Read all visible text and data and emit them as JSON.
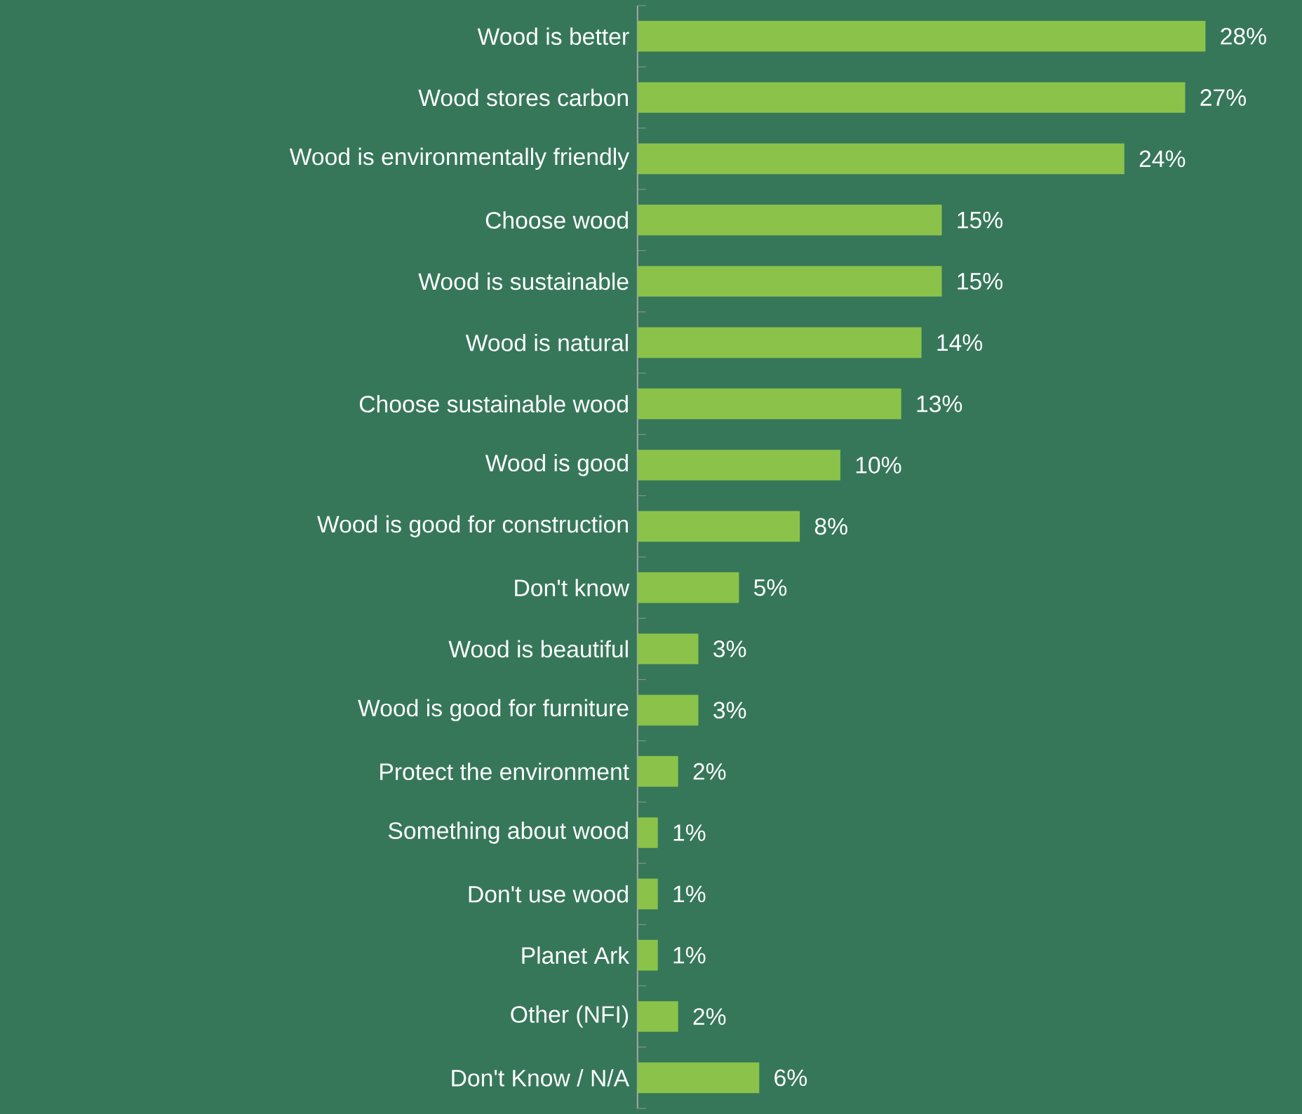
{
  "chart_data": {
    "type": "bar",
    "orientation": "horizontal",
    "categories": [
      "Wood is better",
      "Wood stores carbon",
      "Wood is environmentally friendly",
      "Choose wood",
      "Wood is sustainable",
      "Wood is natural",
      "Choose sustainable wood",
      "Wood is good",
      "Wood is good for construction",
      "Don't know",
      "Wood is beautiful",
      "Wood is good for furniture",
      "Protect the environment",
      "Something about wood",
      "Don't use wood",
      "Planet Ark",
      "Other (NFI)",
      "Don't Know / N/A"
    ],
    "values": [
      28,
      27,
      24,
      15,
      15,
      14,
      13,
      10,
      8,
      5,
      3,
      3,
      2,
      1,
      1,
      1,
      2,
      6
    ],
    "value_labels": [
      "28%",
      "27%",
      "24%",
      "15%",
      "15%",
      "14%",
      "13%",
      "10%",
      "8%",
      "5%",
      "3%",
      "3%",
      "2%",
      "1%",
      "1%",
      "1%",
      "2%",
      "6%"
    ],
    "color": "#8bc34a"
  }
}
